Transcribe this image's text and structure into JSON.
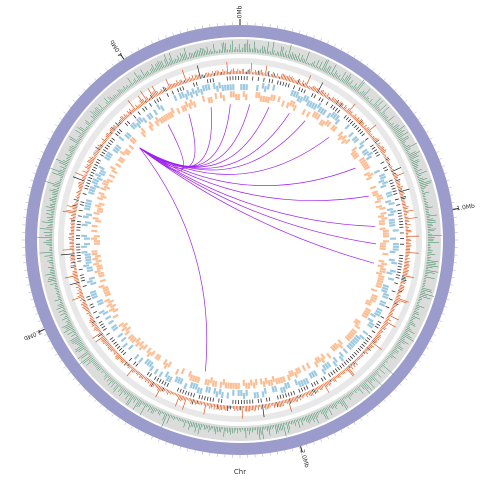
{
  "chart_data": {
    "type": "circos",
    "chromosome": "Chr",
    "xlim": [
      0,
      4.4
    ],
    "xticks": [
      {
        "value": 0,
        "label": "0Mb"
      },
      {
        "value": 1,
        "label": "1.0Mb"
      },
      {
        "value": 2,
        "label": "2.0Mb"
      },
      {
        "value": 3,
        "label": "3.0Mb"
      },
      {
        "value": 4,
        "label": "4.0Mb"
      }
    ],
    "ideogram_color": "#9c9ccc",
    "link_color": "#a020f0",
    "links": {
      "source": [
        3.82,
        3.82,
        3.82,
        3.82,
        3.82,
        3.82,
        3.82,
        3.82,
        3.82,
        3.82,
        3.82,
        3.82,
        3.82,
        3.82,
        3.82
      ],
      "target": [
        4.01,
        4.13,
        4.25,
        4.35,
        0.05,
        0.15,
        0.26,
        0.35,
        0.5,
        0.71,
        0.87,
        1.03,
        1.12,
        1.22,
        2.38
      ]
    }
  }
}
